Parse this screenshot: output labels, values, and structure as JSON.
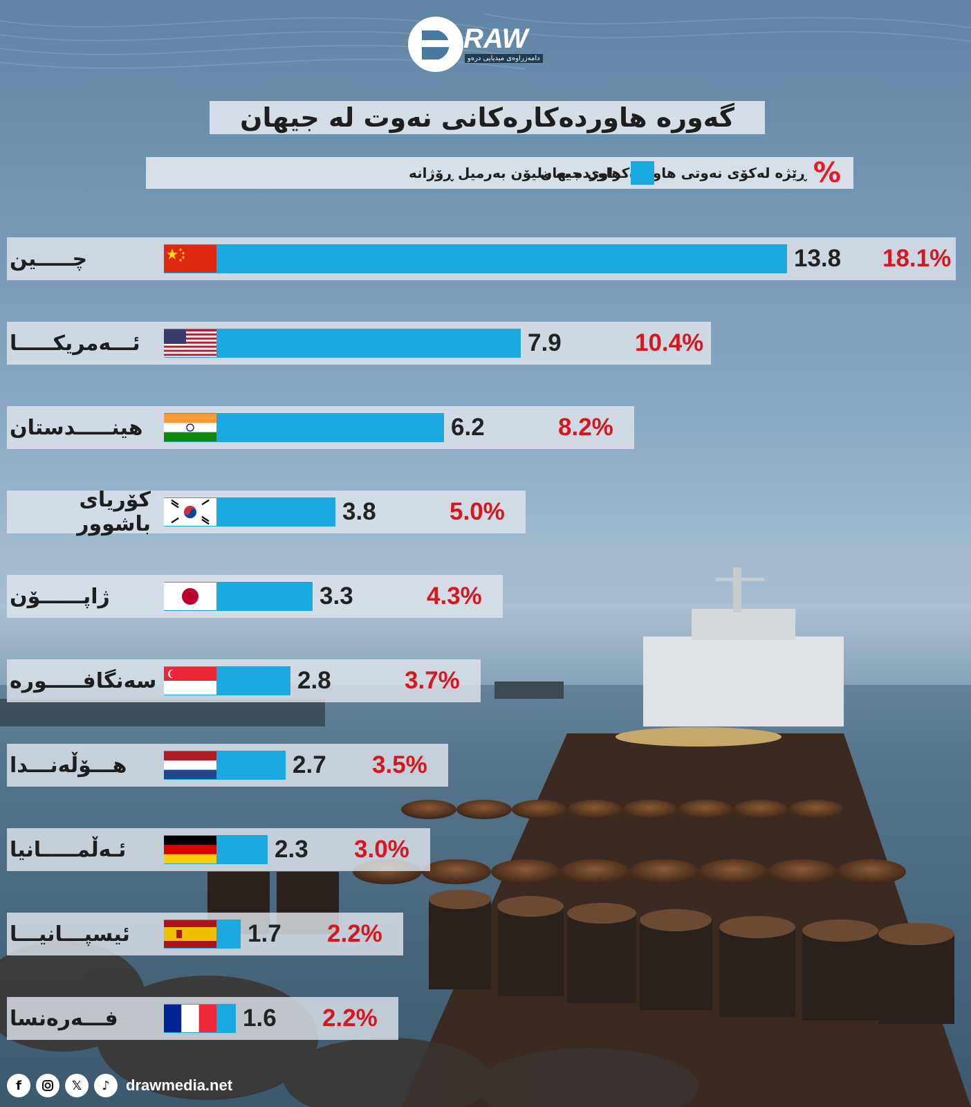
{
  "brand": {
    "name": "RAW",
    "tagline": "دامەزراوەی میدیایی درەو"
  },
  "title": "گەورە هاوردەکارەکانی نەوت لە جیهان",
  "legend": {
    "percent_symbol": "%",
    "percent_label": "ڕێژە لەکۆی نەوتی هاوردەکراوی جیهان",
    "bar_label": "هاوردە بە ملیۆن بەرمیل ڕۆژانە",
    "bar_color": "#1ba9e1",
    "percent_color": "#d8161f"
  },
  "chart_data": {
    "type": "bar",
    "orientation": "horizontal",
    "categories": [
      "چـــــین",
      "ئـــەمریکـــــا",
      "هینـــــدستان",
      "کۆریای باشوور",
      "ژاپــــــۆن",
      "سەنگافـــــورە",
      "هـــۆڵەنـــدا",
      "ئـەڵمـــــانیا",
      "ئیسپـــانیـــا",
      "فـــەرەنسا"
    ],
    "flags": [
      "china-flag-icon",
      "usa-flag-icon",
      "india-flag-icon",
      "south-korea-flag-icon",
      "japan-flag-icon",
      "singapore-flag-icon",
      "netherlands-flag-icon",
      "germany-flag-icon",
      "spain-flag-icon",
      "france-flag-icon"
    ],
    "series": [
      {
        "values": [
          13.8,
          7.9,
          6.2,
          3.8,
          3.3,
          2.8,
          2.7,
          2.3,
          1.7,
          1.6
        ]
      }
    ],
    "value_labels": [
      "13.8",
      "7.9",
      "6.2",
      "3.8",
      "3.3",
      "2.8",
      "2.7",
      "2.3",
      "1.7",
      "1.6"
    ],
    "percent_labels": [
      "18.1%",
      "10.4%",
      "8.2%",
      "5.0%",
      "4.3%",
      "3.7%",
      "3.5%",
      "3.0%",
      "2.2%",
      "2.2%"
    ],
    "xlim": [
      0,
      13.8
    ]
  },
  "footer": {
    "icons": [
      "facebook-icon",
      "instagram-icon",
      "x-icon",
      "tiktok-icon"
    ],
    "website": "drawmedia.net"
  }
}
